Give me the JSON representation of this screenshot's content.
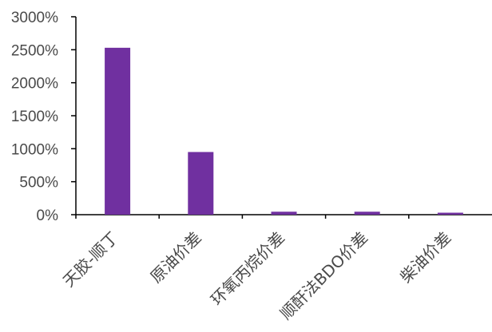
{
  "chart_data": {
    "type": "bar",
    "categories": [
      "天胶-顺丁",
      "原油价差",
      "环氧丙烷价差",
      "顺酐法BDO价差",
      "柴油价差"
    ],
    "values": [
      2530,
      950,
      45,
      45,
      30
    ],
    "ylim": [
      0,
      3000
    ],
    "yticks": [
      "0%",
      "500%",
      "1000%",
      "1500%",
      "2000%",
      "2500%",
      "3000%"
    ],
    "ytick_values": [
      0,
      500,
      1000,
      1500,
      2000,
      2500,
      3000
    ],
    "grid": false,
    "legend": "none",
    "colors": {
      "bar": "#7030a0",
      "axis": "#000000",
      "text": "#4a4a4a"
    }
  }
}
